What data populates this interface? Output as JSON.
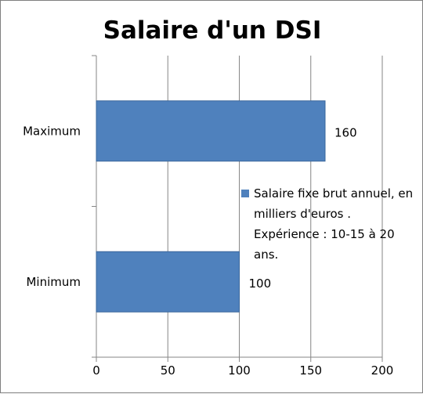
{
  "colors": {
    "bar": "#4f81bd",
    "bar_border": "#3a679c",
    "grid": "#868686",
    "axis": "#868686"
  },
  "chart_data": {
    "type": "bar",
    "orientation": "horizontal",
    "title": "Salaire d'un DSI",
    "categories": [
      "Minimum",
      "Maximum"
    ],
    "series": [
      {
        "name": "Salaire fixe brut annuel, en milliers d'euros . Expérience : 10-15 à 20 ans.",
        "values": [
          100,
          160
        ]
      }
    ],
    "data_labels": [
      "100",
      "160"
    ],
    "xlim": [
      0,
      200
    ],
    "x_ticks": [
      "0",
      "50",
      "100",
      "150",
      "200"
    ],
    "grid": true,
    "legend_position": "right"
  }
}
